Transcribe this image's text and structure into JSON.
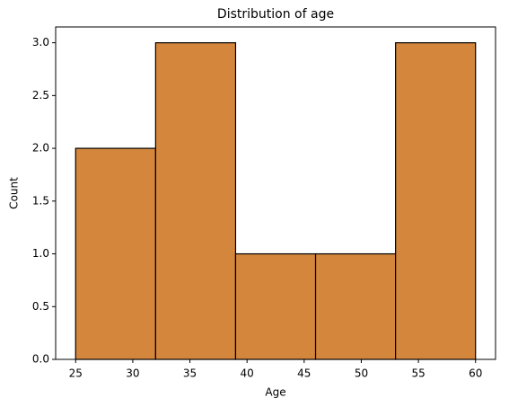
{
  "chart_data": {
    "type": "histogram",
    "title": "Distribution of age",
    "x_label": "Age",
    "y_label": "Count",
    "bins": [
      25,
      32,
      39,
      46,
      53,
      60
    ],
    "values": [
      2,
      3,
      1,
      1,
      3
    ],
    "color": "#d4873c",
    "edge_color": "#000000",
    "xlim": [
      23.25,
      61.75
    ],
    "xticks": [
      25,
      30,
      35,
      40,
      45,
      50,
      55,
      60
    ],
    "ylim": [
      0,
      3.15
    ],
    "yticks": [
      {
        "value": 0,
        "label": "0.0"
      },
      {
        "value": 0.5,
        "label": "0.5"
      },
      {
        "value": 1,
        "label": "1.0"
      },
      {
        "value": 1.5,
        "label": "1.5"
      },
      {
        "value": 2,
        "label": "2.0"
      },
      {
        "value": 2.5,
        "label": "2.5"
      },
      {
        "value": 3,
        "label": "3.0"
      }
    ]
  }
}
